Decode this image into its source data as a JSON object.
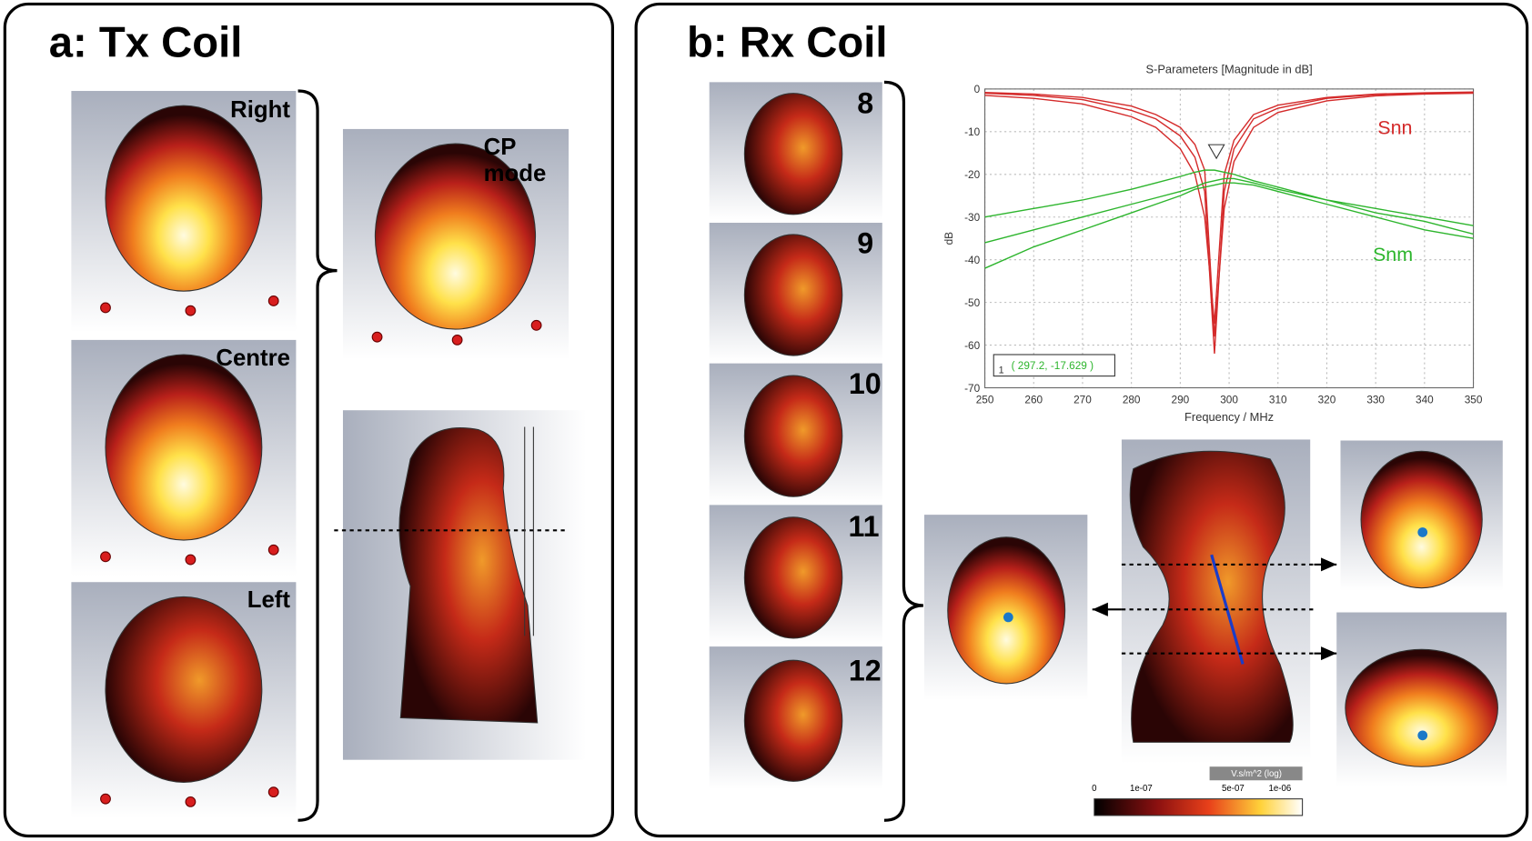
{
  "panel_a": {
    "title": "a: Tx Coil",
    "labels": [
      "Right",
      "Centre",
      "Left"
    ],
    "cp_label": [
      "CP",
      "mode"
    ]
  },
  "panel_b": {
    "title": "b: Rx Coil",
    "element_labels": [
      "8",
      "9",
      "10",
      "11",
      "12"
    ],
    "colorbar": {
      "title": "V.s/m^2 (log)",
      "ticks": [
        "0",
        "1e-07",
        "5e-07",
        "1e-06"
      ]
    }
  },
  "chart_data": {
    "type": "line",
    "title": "S-Parameters [Magnitude in dB]",
    "x_label": "Frequency / MHz",
    "y_label": "dB",
    "x": [
      250,
      260,
      270,
      280,
      285,
      290,
      293,
      295,
      297,
      299,
      301,
      305,
      310,
      320,
      330,
      340,
      350
    ],
    "xlim": [
      250,
      350
    ],
    "ylim": [
      -70,
      0
    ],
    "xticks": [
      250,
      260,
      270,
      280,
      290,
      300,
      310,
      320,
      330,
      340,
      350
    ],
    "yticks": [
      0,
      -10,
      -20,
      -30,
      -40,
      -50,
      -60,
      -70
    ],
    "grid": true,
    "series": [
      {
        "name": "Snn",
        "color": "#d42a2a",
        "values": [
          -1,
          -1.5,
          -2.5,
          -5,
          -7,
          -11,
          -16,
          -24,
          -62,
          -24,
          -14,
          -7,
          -4.5,
          -2.2,
          -1.3,
          -1,
          -0.8
        ]
      },
      {
        "name": "Snn",
        "color": "#d42a2a",
        "values": [
          -1.5,
          -2.2,
          -3.5,
          -6.5,
          -9,
          -14,
          -20,
          -30,
          -55,
          -20,
          -12,
          -6,
          -3.8,
          -2,
          -1.2,
          -0.9,
          -0.7
        ]
      },
      {
        "name": "Snn",
        "color": "#d42a2a",
        "values": [
          -0.8,
          -1.2,
          -2,
          -4,
          -6,
          -9,
          -13,
          -19,
          -58,
          -28,
          -17,
          -9,
          -5.5,
          -2.8,
          -1.6,
          -1.2,
          -1
        ]
      },
      {
        "name": "Snm",
        "color": "#2db52d",
        "values": [
          -30,
          -28,
          -26,
          -23.5,
          -22,
          -20.5,
          -19.5,
          -19,
          -19,
          -19.5,
          -20,
          -21.5,
          -23,
          -26,
          -28,
          -30,
          -32
        ]
      },
      {
        "name": "Snm",
        "color": "#2db52d",
        "values": [
          -36,
          -33,
          -30,
          -27,
          -25.5,
          -24,
          -23,
          -22,
          -21.5,
          -21,
          -21,
          -22,
          -23.5,
          -26,
          -29,
          -31,
          -34
        ]
      },
      {
        "name": "Snm",
        "color": "#2db52d",
        "values": [
          -42,
          -37,
          -33,
          -29,
          -27,
          -25,
          -23.5,
          -23,
          -22.5,
          -22,
          -22,
          -22.5,
          -24,
          -27,
          -30,
          -33,
          -35
        ]
      }
    ],
    "marker": {
      "label": "1",
      "text": "( 297.2, -17.629 )"
    }
  }
}
